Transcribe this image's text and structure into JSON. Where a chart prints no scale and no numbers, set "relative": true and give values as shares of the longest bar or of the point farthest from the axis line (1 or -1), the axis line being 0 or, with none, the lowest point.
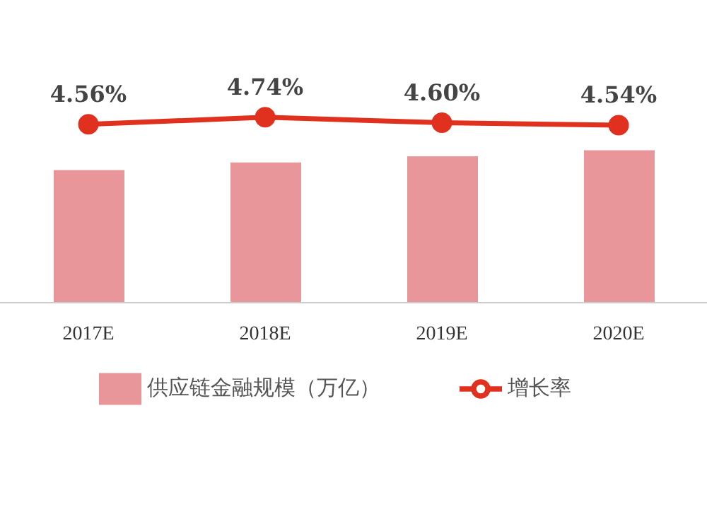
{
  "chart_data": [
    {
      "type": "bar",
      "categories": [
        "2017E",
        "2018E",
        "2019E",
        "2020E"
      ],
      "relative": true,
      "legend": "bottom",
      "series": [
        {
          "name": "供应链金融规模（万亿）",
          "color": "#e8969a",
          "values": [
            0.87,
            0.92,
            0.96,
            1
          ]
        }
      ]
    },
    {
      "type": "line",
      "legend": "bottom",
      "marker": "circle",
      "series": [
        {
          "name": "增长率",
          "color": "#e0301e",
          "values": [
            4.56,
            4.74,
            4.6,
            4.54
          ],
          "value_labels": [
            "4.56%",
            "4.74%",
            "4.60%",
            "4.54%"
          ]
        }
      ]
    }
  ]
}
